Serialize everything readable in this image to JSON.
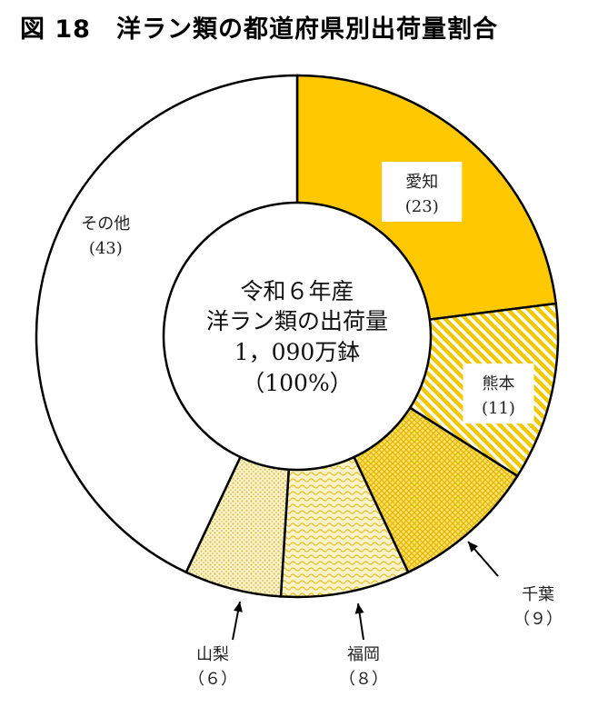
{
  "title": "図 18　洋ラン類の都道府県別出荷量割合",
  "chart_data": {
    "type": "pie",
    "title": "図 18　洋ラン類の都道府県別出荷量割合",
    "center_text": [
      "令和６年産",
      "洋ラン類の出荷量",
      "1，090万鉢",
      "（100%）"
    ],
    "slices": [
      {
        "name": "愛知",
        "value": 23,
        "value_label": "(23)",
        "color": "#FFC800",
        "pattern": "solid"
      },
      {
        "name": "熊本",
        "value": 11,
        "value_label": "(11)",
        "color": "#F2C800",
        "pattern": "diagonal-stripes"
      },
      {
        "name": "千葉",
        "value": 9,
        "value_label": "（９）",
        "color": "#F0D020",
        "pattern": "crosshatch"
      },
      {
        "name": "福岡",
        "value": 8,
        "value_label": "（８）",
        "color": "#F0DA60",
        "pattern": "wave"
      },
      {
        "name": "山梨",
        "value": 6,
        "value_label": "（６）",
        "color": "#E8D66A",
        "pattern": "dots"
      },
      {
        "name": "その他",
        "value": 43,
        "value_label": "(43)",
        "color": "#FFFFFF",
        "pattern": "none"
      }
    ],
    "unit": "%",
    "legend": "none"
  }
}
